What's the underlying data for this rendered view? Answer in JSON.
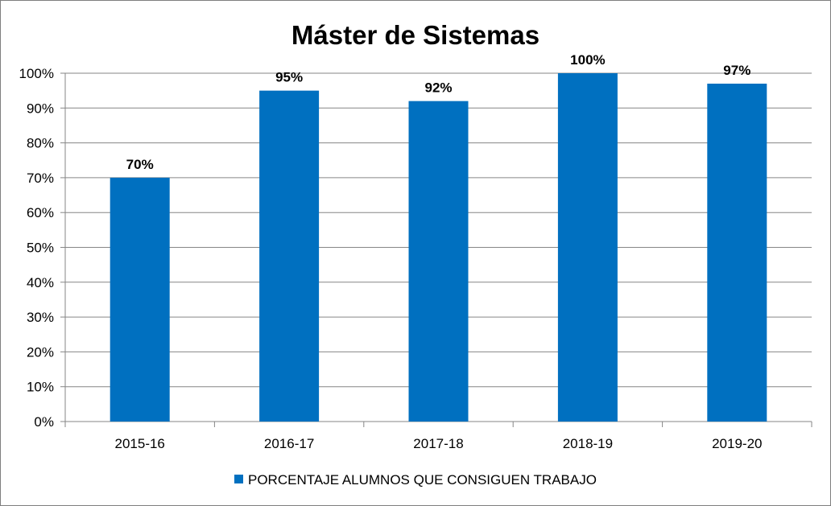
{
  "chart_data": {
    "type": "bar",
    "title": "Máster de Sistemas",
    "categories": [
      "2015-16",
      "2016-17",
      "2017-18",
      "2018-19",
      "2019-20"
    ],
    "series": [
      {
        "name": "PORCENTAJE ALUMNOS QUE CONSIGUEN TRABAJO",
        "values": [
          70,
          95,
          92,
          100,
          97
        ],
        "data_labels": [
          "70%",
          "95%",
          "92%",
          "100%",
          "97%"
        ],
        "color": "#0070c0"
      }
    ],
    "ylim": [
      0,
      100
    ],
    "y_ticks": [
      0,
      10,
      20,
      30,
      40,
      50,
      60,
      70,
      80,
      90,
      100
    ],
    "y_tick_labels": [
      "0%",
      "10%",
      "20%",
      "30%",
      "40%",
      "50%",
      "60%",
      "70%",
      "80%",
      "90%",
      "100%"
    ],
    "xlabel": "",
    "ylabel": "",
    "grid": true,
    "legend_position": "bottom"
  }
}
